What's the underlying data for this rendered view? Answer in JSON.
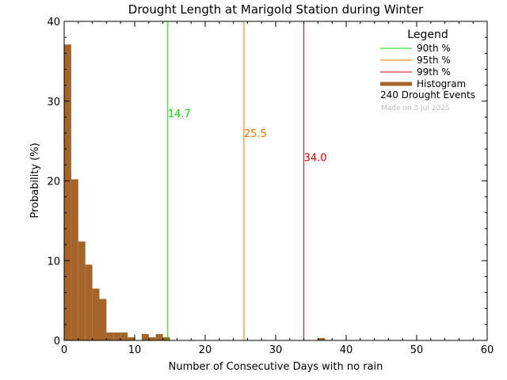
{
  "chart_data": {
    "type": "bar",
    "title": "Drought Length at Marigold Station during Winter",
    "xlabel": "Number of Consecutive Days with no rain",
    "ylabel": "Probability (%)",
    "xlim": [
      0,
      60
    ],
    "ylim": [
      0,
      40
    ],
    "xticks": [
      0,
      10,
      20,
      30,
      40,
      50,
      60
    ],
    "yticks": [
      0,
      10,
      20,
      30,
      40
    ],
    "bin_width": 1,
    "bins": [
      {
        "x": 0,
        "value": 37.1
      },
      {
        "x": 1,
        "value": 20.2
      },
      {
        "x": 2,
        "value": 12.4
      },
      {
        "x": 3,
        "value": 9.5
      },
      {
        "x": 4,
        "value": 6.5
      },
      {
        "x": 5,
        "value": 5.2
      },
      {
        "x": 6,
        "value": 1.0
      },
      {
        "x": 7,
        "value": 1.0
      },
      {
        "x": 8,
        "value": 1.0
      },
      {
        "x": 9,
        "value": 0.4
      },
      {
        "x": 11,
        "value": 0.8
      },
      {
        "x": 12,
        "value": 0.4
      },
      {
        "x": 13,
        "value": 0.8
      },
      {
        "x": 14,
        "value": 0.4
      },
      {
        "x": 36,
        "value": 0.3
      }
    ],
    "percentiles": [
      {
        "label": "90th %",
        "value": 14.7,
        "text": "14.7",
        "color": "#00dd00",
        "label_y": 28
      },
      {
        "label": "95th %",
        "value": 25.5,
        "text": "25.5",
        "color": "#ee7700",
        "label_y": 25.5
      },
      {
        "label": "99th %",
        "value": 34.0,
        "text": "34.0",
        "color": "#cc0000",
        "label_y": 22.5
      }
    ],
    "histogram_color": "#a5652a",
    "legend": {
      "title": "Legend",
      "position": "top-right",
      "entries": [
        "90th %",
        "95th %",
        "99th %",
        "Histogram"
      ],
      "events": "240 Drought Events",
      "stamp": "Made on 3 Jul 2025"
    }
  }
}
